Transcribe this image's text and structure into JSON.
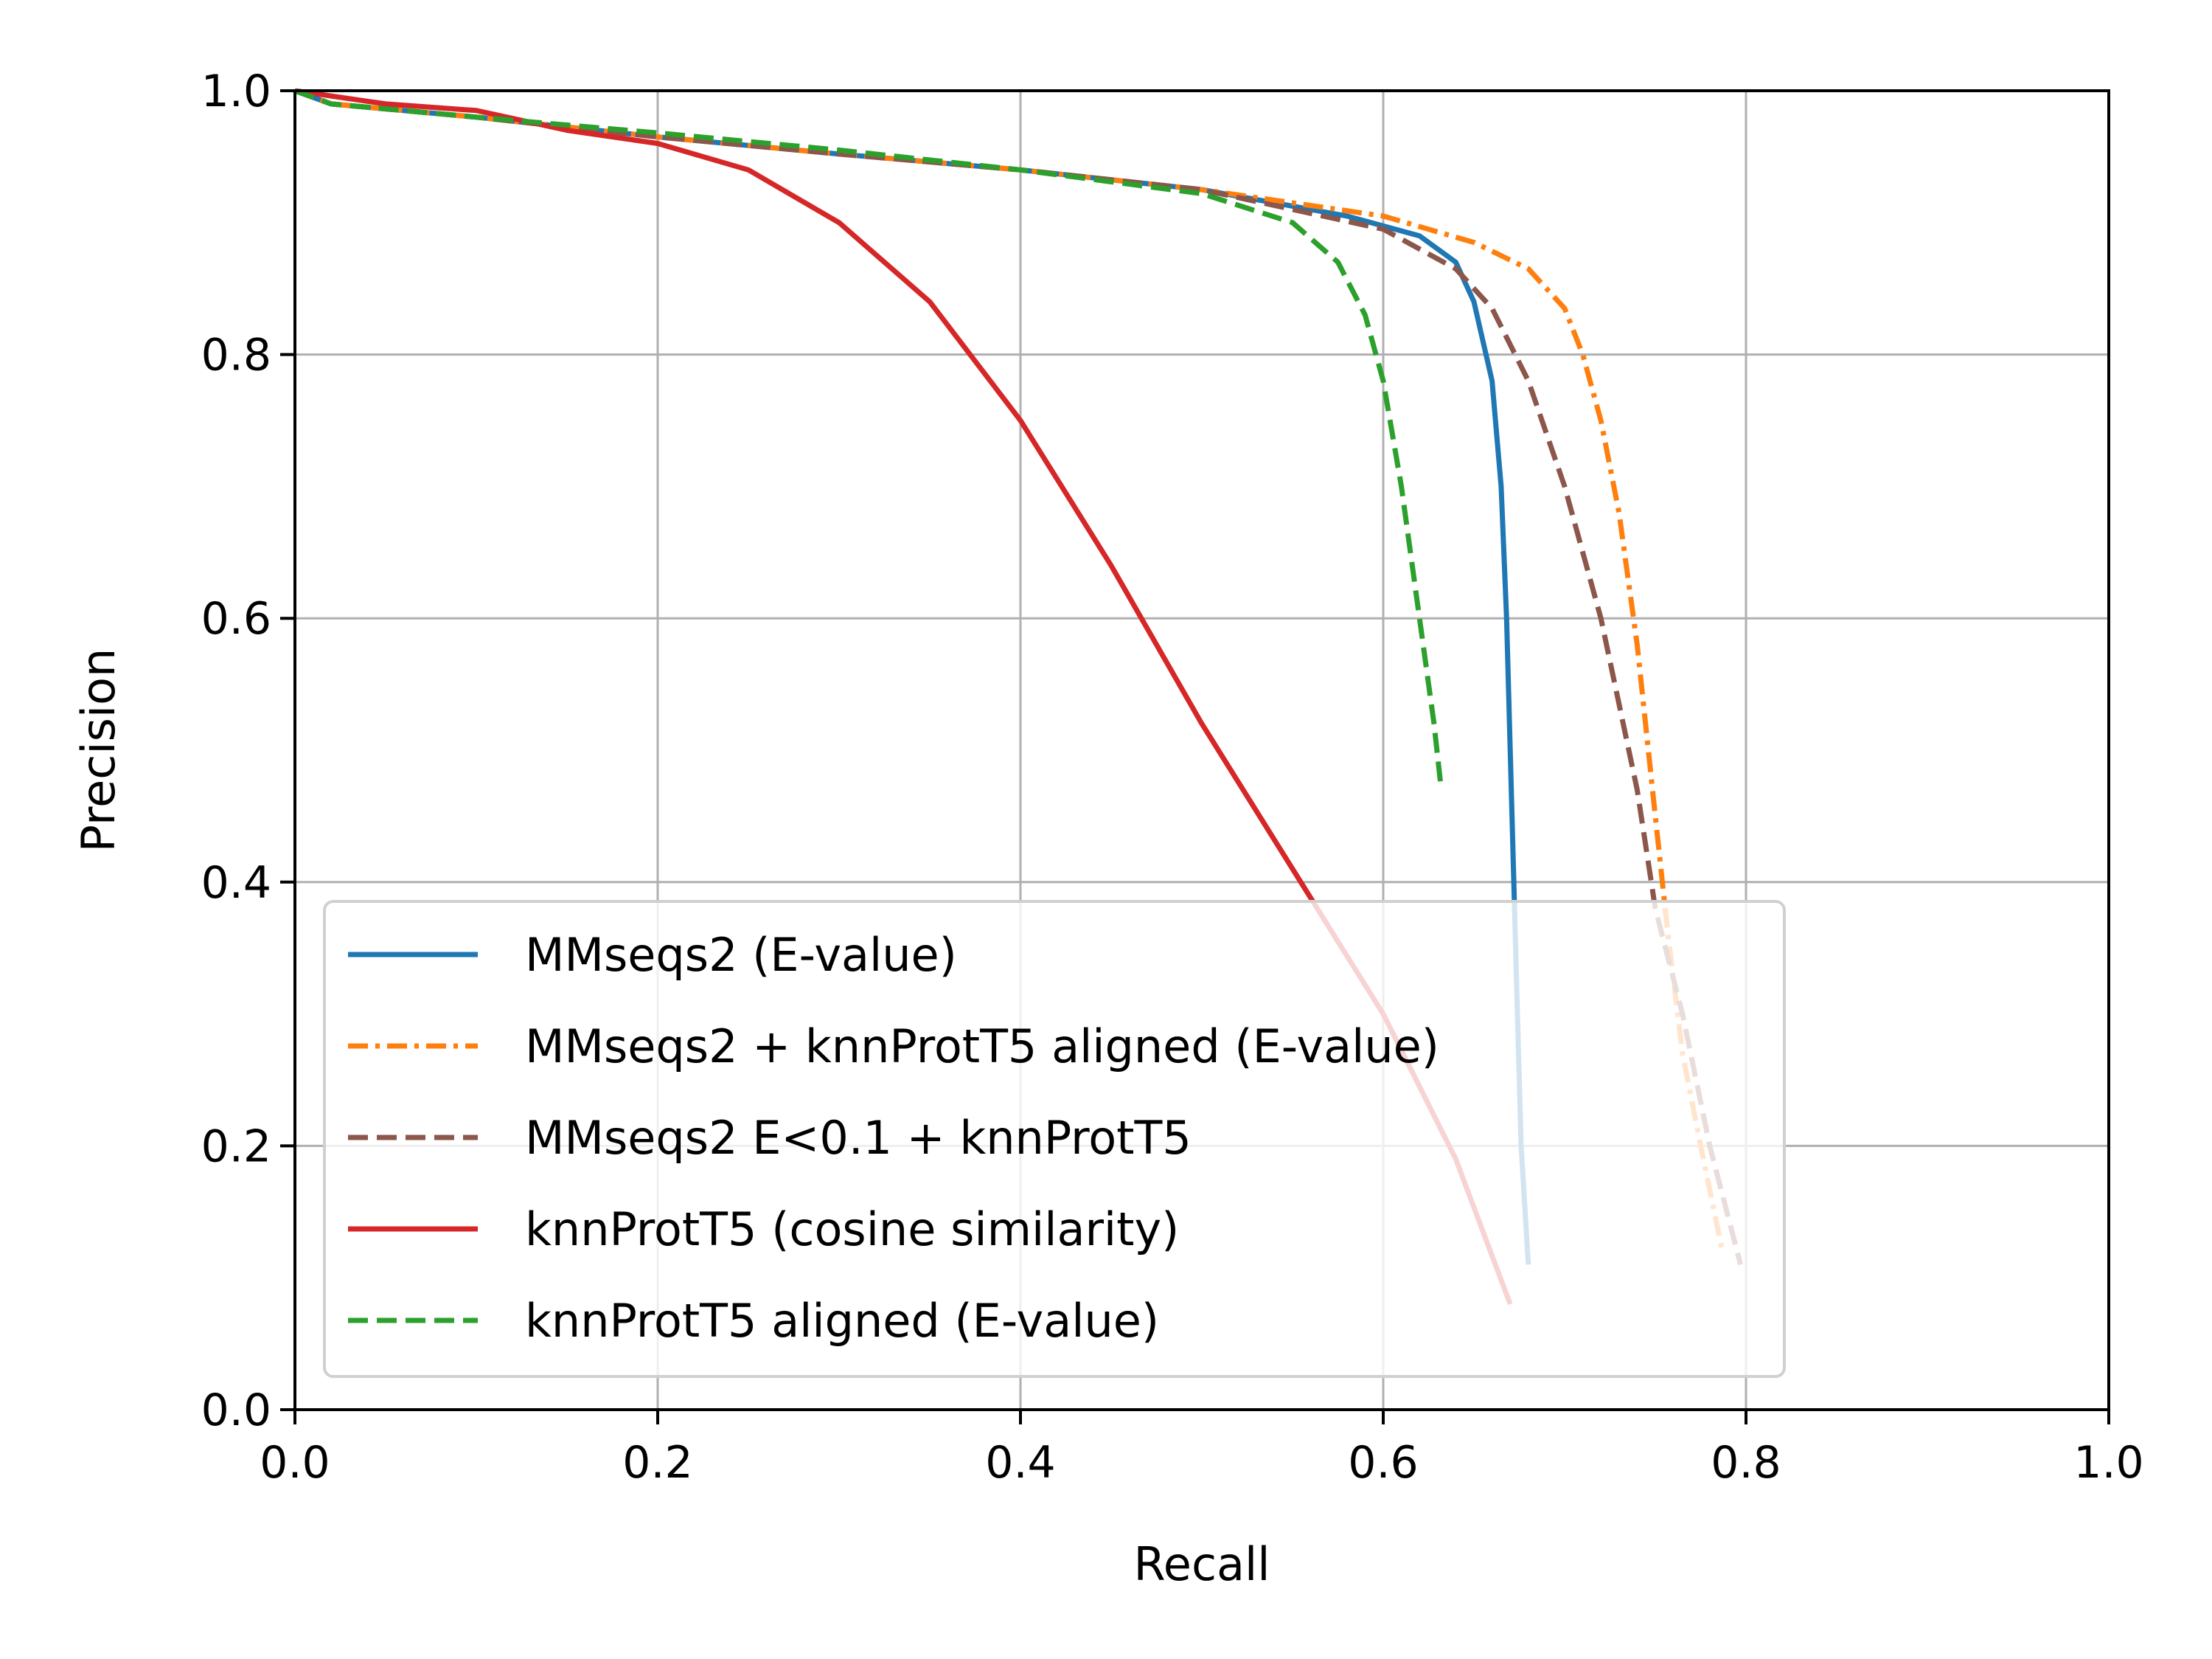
{
  "chart_data": {
    "type": "line",
    "title": "",
    "xlabel": "Recall",
    "ylabel": "Precision",
    "xlim": [
      0.0,
      1.0
    ],
    "ylim": [
      0.0,
      1.0
    ],
    "xticks": [
      "0.0",
      "0.2",
      "0.4",
      "0.6",
      "0.8",
      "1.0"
    ],
    "yticks": [
      "0.0",
      "0.2",
      "0.4",
      "0.6",
      "0.8",
      "1.0"
    ],
    "grid": true,
    "legend_position": "lower-left",
    "series": [
      {
        "name": "MMseqs2 (E-value)",
        "color": "#1f77b4",
        "dash": "solid",
        "points": [
          [
            0.0,
            1.0
          ],
          [
            0.02,
            0.99
          ],
          [
            0.1,
            0.98
          ],
          [
            0.2,
            0.965
          ],
          [
            0.3,
            0.952
          ],
          [
            0.4,
            0.94
          ],
          [
            0.5,
            0.925
          ],
          [
            0.58,
            0.905
          ],
          [
            0.62,
            0.89
          ],
          [
            0.64,
            0.87
          ],
          [
            0.65,
            0.84
          ],
          [
            0.66,
            0.78
          ],
          [
            0.665,
            0.7
          ],
          [
            0.668,
            0.6
          ],
          [
            0.67,
            0.5
          ],
          [
            0.672,
            0.4
          ],
          [
            0.674,
            0.3
          ],
          [
            0.676,
            0.2
          ],
          [
            0.68,
            0.11
          ]
        ]
      },
      {
        "name": "MMseqs2 + knnProtT5 aligned (E-value)",
        "color": "#ff7f0e",
        "dash": "dashdot",
        "points": [
          [
            0.0,
            1.0
          ],
          [
            0.02,
            0.99
          ],
          [
            0.1,
            0.98
          ],
          [
            0.2,
            0.965
          ],
          [
            0.3,
            0.952
          ],
          [
            0.4,
            0.94
          ],
          [
            0.5,
            0.925
          ],
          [
            0.6,
            0.905
          ],
          [
            0.65,
            0.885
          ],
          [
            0.68,
            0.865
          ],
          [
            0.7,
            0.835
          ],
          [
            0.71,
            0.8
          ],
          [
            0.72,
            0.75
          ],
          [
            0.73,
            0.68
          ],
          [
            0.74,
            0.58
          ],
          [
            0.75,
            0.45
          ],
          [
            0.757,
            0.36
          ],
          [
            0.765,
            0.27
          ],
          [
            0.775,
            0.2
          ],
          [
            0.787,
            0.12
          ]
        ]
      },
      {
        "name": "MMseqs2 E<0.1 + knnProtT5",
        "color": "#8c564b",
        "dash": "dashed",
        "points": [
          [
            0.0,
            1.0
          ],
          [
            0.02,
            0.99
          ],
          [
            0.1,
            0.98
          ],
          [
            0.2,
            0.965
          ],
          [
            0.3,
            0.952
          ],
          [
            0.4,
            0.94
          ],
          [
            0.5,
            0.925
          ],
          [
            0.6,
            0.895
          ],
          [
            0.64,
            0.865
          ],
          [
            0.66,
            0.835
          ],
          [
            0.68,
            0.78
          ],
          [
            0.7,
            0.7
          ],
          [
            0.72,
            0.6
          ],
          [
            0.74,
            0.47
          ],
          [
            0.75,
            0.38
          ],
          [
            0.765,
            0.3
          ],
          [
            0.78,
            0.2
          ],
          [
            0.797,
            0.11
          ]
        ]
      },
      {
        "name": "knnProtT5 (cosine similarity)",
        "color": "#d62728",
        "dash": "solid",
        "points": [
          [
            0.0,
            1.0
          ],
          [
            0.05,
            0.99
          ],
          [
            0.1,
            0.985
          ],
          [
            0.15,
            0.97
          ],
          [
            0.2,
            0.96
          ],
          [
            0.25,
            0.94
          ],
          [
            0.3,
            0.9
          ],
          [
            0.35,
            0.84
          ],
          [
            0.4,
            0.75
          ],
          [
            0.45,
            0.64
          ],
          [
            0.5,
            0.52
          ],
          [
            0.55,
            0.41
          ],
          [
            0.6,
            0.3
          ],
          [
            0.64,
            0.19
          ],
          [
            0.67,
            0.08
          ]
        ]
      },
      {
        "name": "knnProtT5 aligned (E-value)",
        "color": "#2ca02c",
        "dash": "dashed",
        "points": [
          [
            0.0,
            1.0
          ],
          [
            0.02,
            0.99
          ],
          [
            0.1,
            0.98
          ],
          [
            0.2,
            0.968
          ],
          [
            0.3,
            0.955
          ],
          [
            0.4,
            0.94
          ],
          [
            0.5,
            0.922
          ],
          [
            0.55,
            0.9
          ],
          [
            0.575,
            0.87
          ],
          [
            0.59,
            0.83
          ],
          [
            0.6,
            0.78
          ],
          [
            0.61,
            0.7
          ],
          [
            0.62,
            0.6
          ],
          [
            0.628,
            0.52
          ],
          [
            0.632,
            0.47
          ]
        ]
      }
    ]
  }
}
